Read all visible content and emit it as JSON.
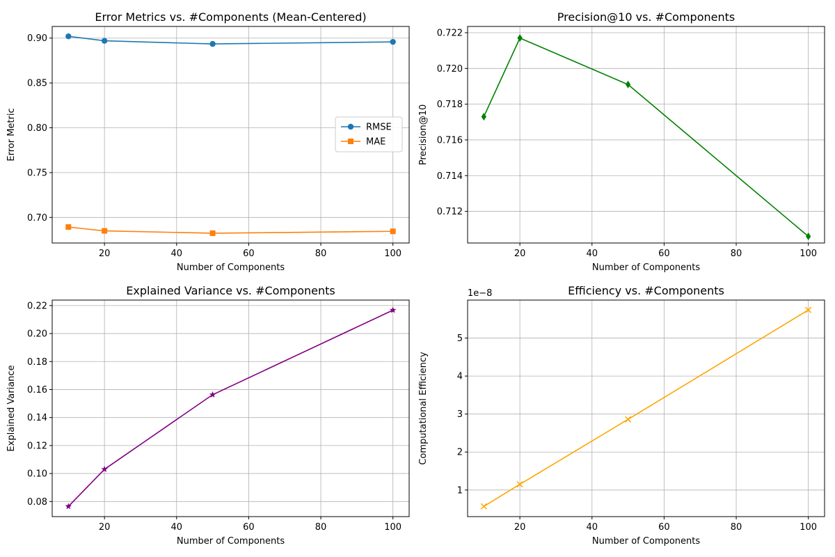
{
  "chart_data": [
    {
      "type": "line",
      "title": "Error Metrics vs. #Components (Mean-Centered)",
      "xlabel": "Number of Components",
      "ylabel": "Error Metric",
      "x": [
        10,
        20,
        50,
        100
      ],
      "xlim": [
        5.5,
        104.5
      ],
      "ylim": [
        0.6715,
        0.913
      ],
      "xticks": [
        20,
        40,
        60,
        80,
        100
      ],
      "yticks": [
        0.7,
        0.75,
        0.8,
        0.85,
        0.9
      ],
      "ytick_labels": [
        "0.70",
        "0.75",
        "0.80",
        "0.85",
        "0.90"
      ],
      "grid": true,
      "legend": "center-right",
      "series": [
        {
          "name": "RMSE",
          "values": [
            0.902,
            0.897,
            0.8935,
            0.8958
          ],
          "color": "#1f77b4",
          "marker": "circle"
        },
        {
          "name": "MAE",
          "values": [
            0.6893,
            0.685,
            0.6824,
            0.6845
          ],
          "color": "#ff7f0e",
          "marker": "square"
        }
      ]
    },
    {
      "type": "line",
      "title": "Precision@10 vs. #Components",
      "xlabel": "Number of Components",
      "ylabel": "Precision@10",
      "x": [
        10,
        20,
        50,
        100
      ],
      "xlim": [
        5.5,
        104.5
      ],
      "ylim": [
        0.71023,
        0.72235
      ],
      "xticks": [
        20,
        40,
        60,
        80,
        100
      ],
      "yticks": [
        0.712,
        0.714,
        0.716,
        0.718,
        0.72,
        0.722
      ],
      "ytick_labels": [
        "0.712",
        "0.714",
        "0.716",
        "0.718",
        "0.720",
        "0.722"
      ],
      "grid": true,
      "series": [
        {
          "values": [
            0.7173,
            0.7217,
            0.7191,
            0.7106
          ],
          "color": "#008000",
          "marker": "thin-diamond"
        }
      ]
    },
    {
      "type": "line",
      "title": "Explained Variance vs. #Components",
      "xlabel": "Number of Components",
      "ylabel": "Explained Variance",
      "x": [
        10,
        20,
        50,
        100
      ],
      "xlim": [
        5.5,
        104.5
      ],
      "ylim": [
        0.0692,
        0.2239
      ],
      "xticks": [
        20,
        40,
        60,
        80,
        100
      ],
      "yticks": [
        0.08,
        0.1,
        0.12,
        0.14,
        0.16,
        0.18,
        0.2,
        0.22
      ],
      "ytick_labels": [
        "0.08",
        "0.10",
        "0.12",
        "0.14",
        "0.16",
        "0.18",
        "0.20",
        "0.22"
      ],
      "grid": true,
      "series": [
        {
          "values": [
            0.0765,
            0.103,
            0.1563,
            0.2167
          ],
          "color": "#800080",
          "marker": "star"
        }
      ]
    },
    {
      "type": "line",
      "title": "Efficiency vs. #Components",
      "xlabel": "Number of Components",
      "ylabel": "Computational Efficiency",
      "offset_label": "1e−8",
      "x": [
        10,
        20,
        50,
        100
      ],
      "xlim": [
        5.5,
        104.5
      ],
      "ylim": [
        0.3,
        6.0
      ],
      "xticks": [
        20,
        40,
        60,
        80,
        100
      ],
      "yticks": [
        1,
        2,
        3,
        4,
        5
      ],
      "ytick_labels": [
        "1",
        "2",
        "3",
        "4",
        "5"
      ],
      "grid": true,
      "series": [
        {
          "values": [
            0.57,
            1.15,
            2.86,
            5.74
          ],
          "color": "#ffa500",
          "marker": "x"
        }
      ]
    }
  ]
}
